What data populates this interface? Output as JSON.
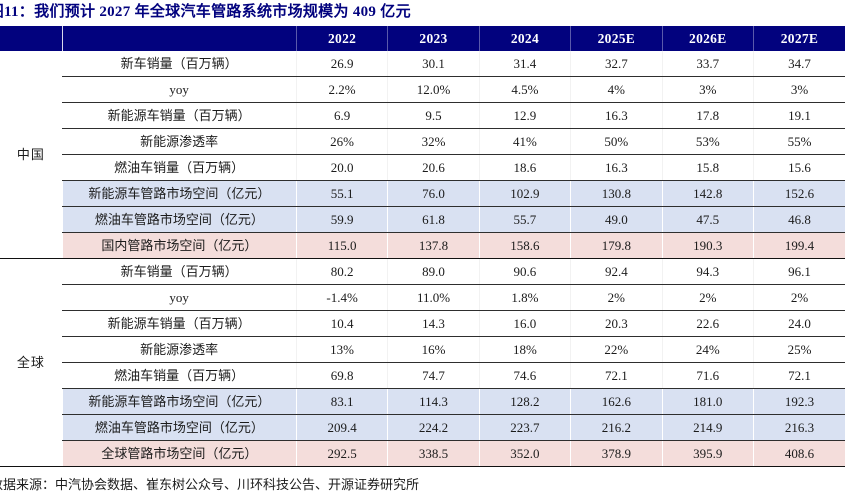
{
  "title": {
    "cut_char": "图",
    "text": "11：我们预计 2027 年全球汽车管路系统市场规模为 409 亿元"
  },
  "source": {
    "cut_char": "数",
    "text": "据来源：中汽协会数据、崔东树公众号、川环科技公告、开源证券研究所"
  },
  "colors": {
    "header_bg": "#02027E",
    "title_text": "#02027E",
    "row_blue": "#D9E1F2",
    "row_pink": "#F4DDDB",
    "grid_line": "#2E2E2E"
  },
  "table": {
    "year_headers": [
      "2022",
      "2023",
      "2024",
      "2025E",
      "2026E",
      "2027E"
    ],
    "sections": [
      {
        "region": "中国",
        "rows": [
          {
            "label": "新车销量（百万辆）",
            "style": "plain",
            "values": [
              "26.9",
              "30.1",
              "31.4",
              "32.7",
              "33.7",
              "34.7"
            ]
          },
          {
            "label": "yoy",
            "style": "plain",
            "values": [
              "2.2%",
              "12.0%",
              "4.5%",
              "4%",
              "3%",
              "3%"
            ]
          },
          {
            "label": "新能源车销量（百万辆）",
            "style": "plain",
            "values": [
              "6.9",
              "9.5",
              "12.9",
              "16.3",
              "17.8",
              "19.1"
            ]
          },
          {
            "label": "新能源渗透率",
            "style": "plain",
            "values": [
              "26%",
              "32%",
              "41%",
              "50%",
              "53%",
              "55%"
            ]
          },
          {
            "label": "燃油车销量（百万辆）",
            "style": "plain",
            "values": [
              "20.0",
              "20.6",
              "18.6",
              "16.3",
              "15.8",
              "15.6"
            ]
          },
          {
            "label": "新能源车管路市场空间（亿元）",
            "style": "blue",
            "values": [
              "55.1",
              "76.0",
              "102.9",
              "130.8",
              "142.8",
              "152.6"
            ]
          },
          {
            "label": "燃油车管路市场空间（亿元）",
            "style": "blue",
            "values": [
              "59.9",
              "61.8",
              "55.7",
              "49.0",
              "47.5",
              "46.8"
            ]
          },
          {
            "label": "国内管路市场空间（亿元）",
            "style": "pink",
            "values": [
              "115.0",
              "137.8",
              "158.6",
              "179.8",
              "190.3",
              "199.4"
            ]
          }
        ]
      },
      {
        "region": "全球",
        "rows": [
          {
            "label": "新车销量（百万辆）",
            "style": "plain",
            "values": [
              "80.2",
              "89.0",
              "90.6",
              "92.4",
              "94.3",
              "96.1"
            ]
          },
          {
            "label": "yoy",
            "style": "plain",
            "values": [
              "-1.4%",
              "11.0%",
              "1.8%",
              "2%",
              "2%",
              "2%"
            ]
          },
          {
            "label": "新能源车销量（百万辆）",
            "style": "plain",
            "values": [
              "10.4",
              "14.3",
              "16.0",
              "20.3",
              "22.6",
              "24.0"
            ]
          },
          {
            "label": "新能源渗透率",
            "style": "plain",
            "values": [
              "13%",
              "16%",
              "18%",
              "22%",
              "24%",
              "25%"
            ]
          },
          {
            "label": "燃油车销量（百万辆）",
            "style": "plain",
            "values": [
              "69.8",
              "74.7",
              "74.6",
              "72.1",
              "71.6",
              "72.1"
            ]
          },
          {
            "label": "新能源车管路市场空间（亿元）",
            "style": "blue",
            "values": [
              "83.1",
              "114.3",
              "128.2",
              "162.6",
              "181.0",
              "192.3"
            ]
          },
          {
            "label": "燃油车管路市场空间（亿元）",
            "style": "blue",
            "values": [
              "209.4",
              "224.2",
              "223.7",
              "216.2",
              "214.9",
              "216.3"
            ]
          },
          {
            "label": "全球管路市场空间（亿元）",
            "style": "pink",
            "values": [
              "292.5",
              "338.5",
              "352.0",
              "378.9",
              "395.9",
              "408.6"
            ]
          }
        ]
      }
    ]
  }
}
